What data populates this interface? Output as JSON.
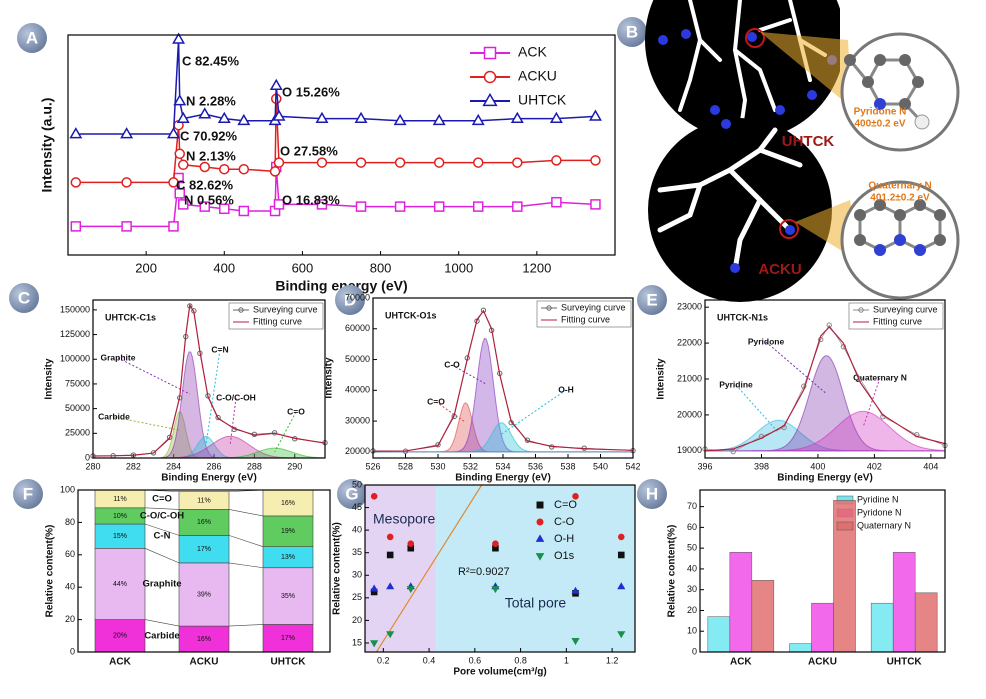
{
  "chart_data": [
    {
      "type": "line",
      "label": "A",
      "xlabel": "Binding energy (eV)",
      "ylabel": "Intensity (a.u.)",
      "xlim": [
        0,
        1400
      ],
      "xticks": [
        200,
        400,
        600,
        800,
        1000,
        1200
      ],
      "ylim": [
        0,
        100
      ],
      "legend": "upper right",
      "x": [
        20,
        150,
        270,
        283,
        286,
        295,
        350,
        400,
        450,
        530,
        533,
        540,
        650,
        750,
        850,
        950,
        1050,
        1150,
        1250,
        1350
      ],
      "series": [
        {
          "name": "ACK",
          "color": "#e020e0",
          "marker": "square",
          "values": [
            13,
            13,
            13,
            35,
            28,
            23,
            22,
            21,
            20,
            20,
            40,
            23,
            23,
            22,
            22,
            22,
            22,
            22,
            24,
            23
          ]
        },
        {
          "name": "ACKU",
          "color": "#e02020",
          "marker": "circle",
          "values": [
            33,
            33,
            33,
            59,
            46,
            41,
            40,
            39,
            39,
            38,
            71,
            42,
            42,
            42,
            42,
            42,
            42,
            42,
            43,
            43
          ]
        },
        {
          "name": "UHTCK",
          "color": "#1a1ab0",
          "marker": "triangle",
          "values": [
            55,
            55,
            55,
            98,
            70,
            62,
            64,
            62,
            61,
            61,
            77,
            63,
            62,
            62,
            61,
            61,
            61,
            62,
            62,
            63
          ]
        }
      ],
      "annotations": [
        {
          "text": "C 82.45%",
          "color": "#1a1ab0"
        },
        {
          "text": "N 2.28%",
          "color": "#1a1ab0"
        },
        {
          "text": "O 15.26%",
          "color": "#1a1ab0"
        },
        {
          "text": "C 70.92%",
          "color": "#d01010"
        },
        {
          "text": "N 2.13%",
          "color": "#d01010"
        },
        {
          "text": "O 27.58%",
          "color": "#d01010"
        },
        {
          "text": "C 82.62%",
          "color": "#111111"
        },
        {
          "text": "N 0.56%",
          "color": "#111111"
        },
        {
          "text": "O 16.83%",
          "color": "#111111"
        }
      ]
    },
    {
      "type": "fit",
      "label": "C",
      "title": "UHTCK-C1s",
      "xlabel": "Binding Energy (eV)",
      "ylabel": "Intensity",
      "xlim": [
        280,
        291.5
      ],
      "xticks": [
        280,
        282,
        284,
        286,
        288,
        290
      ],
      "ylim": [
        0,
        160000
      ],
      "yticks": [
        0,
        25000,
        50000,
        75000,
        100000,
        125000,
        150000
      ],
      "baseline": 0,
      "legend": "upper right",
      "x": [
        280,
        281,
        282,
        283,
        283.8,
        284.3,
        284.6,
        284.8,
        285.0,
        285.3,
        285.7,
        286.2,
        287,
        288,
        289,
        290,
        291.5
      ],
      "series": [
        {
          "name": "Surveying curve",
          "color": "#666666",
          "values": [
            2100,
            2300,
            3000,
            5200,
            21000,
            61000,
            123000,
            154000,
            149000,
            106000,
            63000,
            41000,
            29000,
            24000,
            25500,
            19500,
            15500
          ]
        },
        {
          "name": "Fitting curve",
          "color": "#b02040",
          "values": [
            2000,
            2200,
            2800,
            5000,
            20000,
            62000,
            125000,
            155000,
            148000,
            108000,
            62000,
            40000,
            30000,
            23000,
            25000,
            20000,
            15000
          ]
        }
      ],
      "peaks": [
        {
          "name": "Carbide",
          "color": "#8fb83a",
          "center": 284.3,
          "height": 47000,
          "fwhm": 0.7
        },
        {
          "name": "Graphite",
          "color": "#8a30b0",
          "center": 284.8,
          "height": 108000,
          "fwhm": 0.9
        },
        {
          "name": "C=N",
          "color": "#20c0d8",
          "center": 285.6,
          "height": 22000,
          "fwhm": 1.0
        },
        {
          "name": "C-O/C-OH",
          "color": "#c030a0",
          "center": 286.8,
          "height": 22000,
          "fwhm": 2.2
        },
        {
          "name": "C=O",
          "color": "#30b830",
          "center": 289,
          "height": 10000,
          "fwhm": 2.0
        }
      ]
    },
    {
      "type": "fit",
      "label": "D",
      "title": "UHTCK-O1s",
      "xlabel": "Binding Energy (eV)",
      "ylabel": "Intensity",
      "xlim": [
        526,
        542
      ],
      "xticks": [
        526,
        528,
        530,
        532,
        534,
        536,
        538,
        540,
        542
      ],
      "ylim": [
        18000,
        70000
      ],
      "yticks": [
        20000,
        30000,
        40000,
        50000,
        60000,
        70000
      ],
      "baseline": 20000,
      "legend": "upper right",
      "x": [
        526,
        528,
        530,
        531,
        531.8,
        532.4,
        532.8,
        533.3,
        533.8,
        534.5,
        535.5,
        537,
        539,
        542
      ],
      "series": [
        {
          "name": "Surveying curve",
          "color": "#666666",
          "values": [
            20300,
            20200,
            22300,
            31500,
            50500,
            62500,
            66000,
            59500,
            45500,
            29500,
            23800,
            21600,
            21200,
            20400
          ]
        },
        {
          "name": "Fitting curve",
          "color": "#b02040",
          "values": [
            20200,
            20300,
            22000,
            32000,
            50000,
            63000,
            65800,
            60000,
            45000,
            30000,
            23500,
            21800,
            21000,
            20500
          ]
        }
      ],
      "peaks": [
        {
          "name": "C=O",
          "color": "#e04848",
          "center": 531.7,
          "height": 16000,
          "fwhm": 1.0
        },
        {
          "name": "C-O",
          "color": "#8030c0",
          "center": 532.9,
          "height": 37000,
          "fwhm": 1.2
        },
        {
          "name": "O-H",
          "color": "#20c0d8",
          "center": 533.9,
          "height": 9500,
          "fwhm": 1.4
        }
      ]
    },
    {
      "type": "fit",
      "label": "E",
      "title": "UHTCK-N1s",
      "xlabel": "Binding Energy (eV)",
      "ylabel": "Intensity",
      "xlim": [
        396,
        404.5
      ],
      "xticks": [
        396,
        398,
        400,
        402,
        404
      ],
      "ylim": [
        18800,
        23200
      ],
      "yticks": [
        19000,
        20000,
        21000,
        22000,
        23000
      ],
      "baseline": 19000,
      "legend": "upper right",
      "x": [
        396,
        397,
        398,
        398.8,
        399.5,
        400.1,
        400.4,
        400.9,
        401.5,
        402.3,
        403.5,
        404.5
      ],
      "series": [
        {
          "name": "Surveying curve",
          "color": "#888888",
          "values": [
            19050,
            18980,
            19400,
            19650,
            20800,
            22100,
            22500,
            21900,
            21000,
            19950,
            19450,
            19150
          ]
        },
        {
          "name": "Fitting curve",
          "color": "#b02040",
          "values": [
            19000,
            19050,
            19350,
            19700,
            20700,
            22200,
            22450,
            22000,
            20900,
            20000,
            19400,
            19200
          ]
        }
      ],
      "peaks": [
        {
          "name": "Pyridine",
          "color": "#30b8e0",
          "center": 398.6,
          "height": 850,
          "fwhm": 1.8
        },
        {
          "name": "Pyridone",
          "color": "#7a30a8",
          "center": 400.3,
          "height": 2650,
          "fwhm": 1.4
        },
        {
          "name": "Quaternary N",
          "color": "#d030c0",
          "center": 401.6,
          "height": 1100,
          "fwhm": 2.2
        }
      ]
    },
    {
      "type": "stacked",
      "label": "F",
      "ylabel": "Relative content(%)",
      "categories": [
        "ACK",
        "ACKU",
        "UHTCK"
      ],
      "ylim": [
        0,
        100
      ],
      "yticks": [
        0,
        20,
        40,
        60,
        80,
        100
      ],
      "series": [
        {
          "name": "Carbide",
          "color": "#f030d8",
          "values": [
            20,
            16,
            17
          ],
          "value_labels": [
            "20%",
            "16%",
            "17%"
          ]
        },
        {
          "name": "Graphite",
          "color": "#e8b8f0",
          "values": [
            44,
            39,
            35
          ],
          "value_labels": [
            "44%",
            "39%",
            "35%"
          ]
        },
        {
          "name": "C-N",
          "color": "#40dcf0",
          "values": [
            15,
            17,
            13
          ],
          "value_labels": [
            "15%",
            "17%",
            "13%"
          ]
        },
        {
          "name": "C-O/C-OH",
          "color": "#60cc60",
          "values": [
            10,
            16,
            19
          ],
          "value_labels": [
            "10%",
            "16%",
            "19%"
          ]
        },
        {
          "name": "C=O",
          "color": "#f6eeb0",
          "values": [
            11,
            11,
            16
          ],
          "value_labels": [
            "11%",
            "11%",
            "16%"
          ]
        }
      ]
    },
    {
      "type": "scatter",
      "label": "G",
      "xlabel": "Pore volume(cm³/g)",
      "ylabel": "Relative content(%)",
      "xlim": [
        0.12,
        1.3
      ],
      "xticks": [
        0.2,
        0.4,
        0.6,
        0.8,
        1.0,
        1.2
      ],
      "ylim": [
        13,
        50
      ],
      "yticks": [
        15,
        20,
        25,
        30,
        35,
        40,
        45,
        50
      ],
      "legend": "upper right",
      "regions": [
        {
          "label": "Mesopore",
          "color": "#e4d4f4",
          "xlim": [
            0.12,
            0.43
          ]
        },
        {
          "label": "Total pore",
          "color": "#c4eaf8",
          "xlim": [
            0.43,
            1.3
          ]
        }
      ],
      "trendline": {
        "color": "#e08a30",
        "x": [
          0.17,
          0.63
        ],
        "y": [
          13,
          50
        ]
      },
      "annotation": "R²=0.9027",
      "x": [
        0.16,
        0.23,
        0.32,
        0.69,
        1.04,
        1.24
      ],
      "series": [
        {
          "name": "C=O",
          "color": "#111111",
          "marker": "square",
          "values": [
            26.3,
            34.5,
            36,
            36,
            26,
            34.5
          ]
        },
        {
          "name": "C-O",
          "color": "#e02020",
          "marker": "circle",
          "values": [
            47.5,
            38.5,
            37,
            37,
            47.5,
            38.5
          ]
        },
        {
          "name": "O-H",
          "color": "#2030d0",
          "marker": "triangle",
          "values": [
            27,
            27.5,
            27.5,
            27.5,
            26.5,
            27.5
          ]
        },
        {
          "name": "O1s",
          "color": "#189048",
          "marker": "triangle-down",
          "values": [
            15,
            17,
            27,
            27,
            15.5,
            17
          ]
        }
      ]
    },
    {
      "type": "bar",
      "label": "H",
      "ylabel": "Relative content(%)",
      "categories": [
        "ACK",
        "ACKU",
        "UHTCK"
      ],
      "ylim": [
        0,
        78
      ],
      "yticks": [
        0,
        10,
        20,
        30,
        40,
        50,
        60,
        70
      ],
      "legend": "upper right",
      "series": [
        {
          "name": "Pyridine N",
          "color": "#70e8f0",
          "values": [
            17,
            4,
            23.5
          ]
        },
        {
          "name": "Pyridone N",
          "color": "#f050e8",
          "values": [
            48,
            23.5,
            48
          ]
        },
        {
          "name": "Quaternary N",
          "color": "#e07070",
          "values": [
            34.5,
            73,
            28.5
          ]
        }
      ]
    }
  ],
  "panel_b": {
    "label": "B",
    "samples": [
      "UHTCK",
      "ACKU"
    ],
    "sites": [
      {
        "name": "Pyridone N",
        "energy": "400±0.2 eV"
      },
      {
        "name": "Quaternary N",
        "energy": "401.2±0.2 eV"
      }
    ]
  }
}
